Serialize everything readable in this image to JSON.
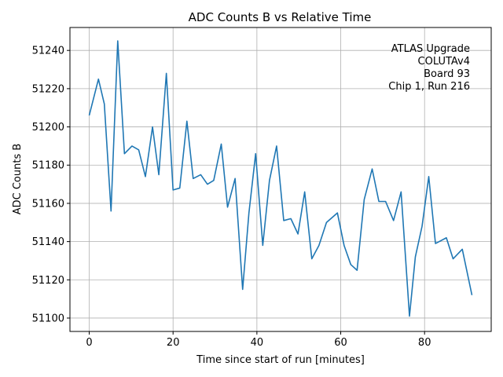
{
  "chart_data": {
    "type": "line",
    "title": "ADC Counts B vs Relative Time",
    "xlabel": "Time since start of run [minutes]",
    "ylabel": "ADC Counts B",
    "xlim": [
      -4.6,
      95.9
    ],
    "ylim": [
      51093,
      51252
    ],
    "xticks": [
      0,
      20,
      40,
      60,
      80
    ],
    "yticks": [
      51100,
      51120,
      51140,
      51160,
      51180,
      51200,
      51220,
      51240
    ],
    "grid": true,
    "line_color": "#1f77b4",
    "annotation": [
      "ATLAS Upgrade",
      "COLUTAv4",
      "Board 93",
      "Chip 1, Run 216"
    ],
    "annotation_placement": "top-right",
    "series": [
      {
        "x": [
          0.0,
          2.2,
          3.6,
          5.2,
          6.8,
          8.4,
          10.2,
          11.8,
          13.4,
          15.1,
          16.6,
          18.4,
          20.0,
          21.6,
          23.3,
          24.8,
          26.6,
          28.2,
          29.7,
          31.5,
          33.0,
          34.8,
          36.6,
          38.1,
          39.7,
          41.4,
          43.0,
          44.7,
          46.4,
          48.1,
          49.8,
          51.4,
          53.1,
          54.8,
          56.6,
          59.2,
          60.8,
          62.4,
          63.9,
          65.6,
          67.5,
          69.1,
          70.7,
          72.6,
          74.4,
          76.4,
          77.8,
          79.4,
          81.0,
          82.6,
          85.2,
          86.8,
          89.0,
          91.3
        ],
        "y": [
          51206,
          51225,
          51212,
          51156,
          51245,
          51186,
          51190,
          51188,
          51174,
          51200,
          51175,
          51228,
          51167,
          51168,
          51203,
          51173,
          51175,
          51170,
          51172,
          51191,
          51158,
          51173,
          51115,
          51155,
          51186,
          51138,
          51172,
          51190,
          51151,
          51152,
          51144,
          51166,
          51131,
          51138,
          51150,
          51155,
          51138,
          51128,
          51125,
          51162,
          51178,
          51161,
          51161,
          51151,
          51166,
          51101,
          51132,
          51148,
          51174,
          51139,
          51142,
          51131,
          51136,
          51112
        ]
      }
    ]
  }
}
